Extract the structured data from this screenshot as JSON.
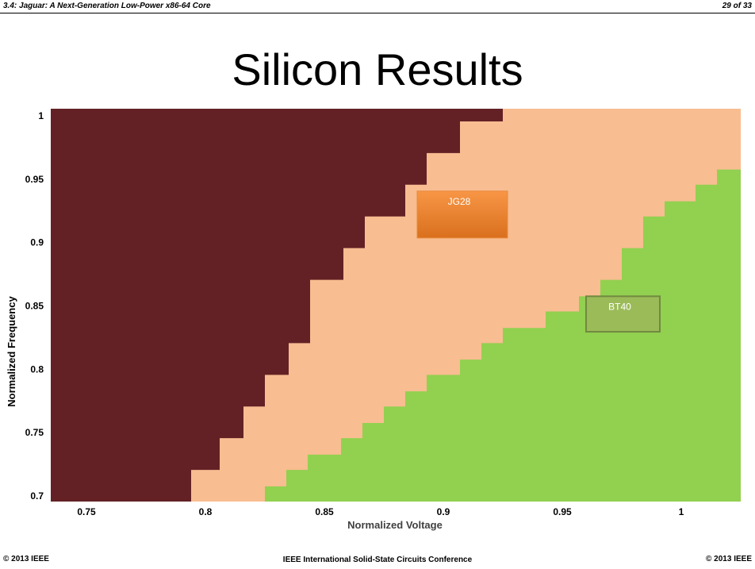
{
  "header": {
    "session": "3.4: Jaguar: A Next-Generation Low-Power x86-64 Core",
    "page": "29 of 33"
  },
  "slide_title": "Silicon Results",
  "footer": {
    "left": "© 2013 IEEE",
    "center": "IEEE International Solid-State Circuits Conference",
    "right": "© 2013 IEEE"
  },
  "colors": {
    "fail": "#632125",
    "jg28": "#F8BD91",
    "bt40": "#92D050",
    "jg28_label_top": "#F79646",
    "jg28_label_bottom": "#D9701E",
    "bt40_label": "#9BBB59"
  },
  "chart_data": {
    "type": "area",
    "xlabel": "Normalized Voltage",
    "ylabel": "Normalized Frequency",
    "xlim": [
      0.735,
      1.025
    ],
    "ylim": [
      0.695,
      1.005
    ],
    "x_ticks": [
      "0.75",
      "0.8",
      "0.85",
      "0.9",
      "0.95",
      "1"
    ],
    "y_ticks": [
      "0.7",
      "0.75",
      "0.8",
      "0.85",
      "0.9",
      "0.95",
      "1"
    ],
    "grid": false,
    "legend": "none",
    "regions": [
      {
        "label": "JG28",
        "boundary": [
          [
            0.794,
            0.695
          ],
          [
            0.794,
            0.72
          ],
          [
            0.806,
            0.72
          ],
          [
            0.806,
            0.745
          ],
          [
            0.816,
            0.745
          ],
          [
            0.816,
            0.77
          ],
          [
            0.825,
            0.77
          ],
          [
            0.825,
            0.795
          ],
          [
            0.835,
            0.795
          ],
          [
            0.835,
            0.82
          ],
          [
            0.844,
            0.82
          ],
          [
            0.844,
            0.87
          ],
          [
            0.858,
            0.87
          ],
          [
            0.858,
            0.895
          ],
          [
            0.867,
            0.895
          ],
          [
            0.867,
            0.92
          ],
          [
            0.884,
            0.92
          ],
          [
            0.884,
            0.945
          ],
          [
            0.893,
            0.945
          ],
          [
            0.893,
            0.97
          ],
          [
            0.907,
            0.97
          ],
          [
            0.907,
            0.995
          ],
          [
            0.925,
            0.995
          ],
          [
            0.925,
            1.005
          ]
        ]
      },
      {
        "label": "BT40",
        "boundary": [
          [
            0.825,
            0.695
          ],
          [
            0.825,
            0.707
          ],
          [
            0.834,
            0.707
          ],
          [
            0.834,
            0.72
          ],
          [
            0.843,
            0.72
          ],
          [
            0.843,
            0.732
          ],
          [
            0.857,
            0.732
          ],
          [
            0.857,
            0.745
          ],
          [
            0.866,
            0.745
          ],
          [
            0.866,
            0.757
          ],
          [
            0.875,
            0.757
          ],
          [
            0.875,
            0.77
          ],
          [
            0.884,
            0.77
          ],
          [
            0.884,
            0.782
          ],
          [
            0.893,
            0.782
          ],
          [
            0.893,
            0.795
          ],
          [
            0.907,
            0.795
          ],
          [
            0.907,
            0.807
          ],
          [
            0.916,
            0.807
          ],
          [
            0.916,
            0.82
          ],
          [
            0.925,
            0.82
          ],
          [
            0.925,
            0.832
          ],
          [
            0.943,
            0.832
          ],
          [
            0.943,
            0.845
          ],
          [
            0.957,
            0.845
          ],
          [
            0.957,
            0.857
          ],
          [
            0.966,
            0.857
          ],
          [
            0.966,
            0.87
          ],
          [
            0.975,
            0.87
          ],
          [
            0.975,
            0.895
          ],
          [
            0.984,
            0.895
          ],
          [
            0.984,
            0.92
          ],
          [
            0.993,
            0.92
          ],
          [
            0.993,
            0.932
          ],
          [
            1.006,
            0.932
          ],
          [
            1.006,
            0.945
          ],
          [
            1.015,
            0.945
          ],
          [
            1.015,
            0.957
          ],
          [
            1.025,
            0.957
          ]
        ]
      }
    ],
    "annotations": [
      {
        "text": "JG28",
        "x_range": [
          0.889,
          0.927
        ],
        "y_range": [
          0.903,
          0.94
        ]
      },
      {
        "text": "BT40",
        "x_range": [
          0.96,
          0.991
        ],
        "y_range": [
          0.829,
          0.857
        ]
      }
    ]
  }
}
